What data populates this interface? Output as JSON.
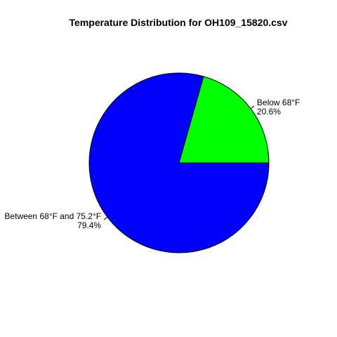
{
  "chart_data": {
    "type": "pie",
    "title": "Temperature Distribution for OH109_15820.csv",
    "slices": [
      {
        "label": "Below 68°F",
        "percent_label": "20.6%",
        "value": 20.6,
        "color": "#00ff00"
      },
      {
        "label": "Between 68°F and 75.2°F",
        "percent_label": "79.4%",
        "value": 79.4,
        "color": "#0000ff"
      }
    ],
    "start": "3 o'clock",
    "direction": "counter-clockwise",
    "border_color": "#000000",
    "legend": "none"
  }
}
